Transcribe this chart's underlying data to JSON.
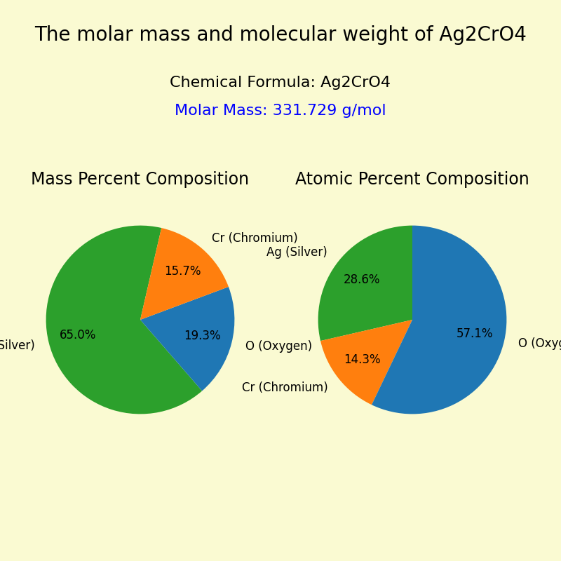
{
  "title": "The molar mass and molecular weight of Ag2CrO4",
  "chemical_formula": "Chemical Formula: Ag2CrO4",
  "molar_mass_text": "Molar Mass: 331.729 g/mol",
  "molar_mass_color": "#0000FF",
  "background_color": "#FAFAD2",
  "title_fontsize": 20,
  "info_fontsize": 16,
  "subtitle1": "Mass Percent Composition",
  "subtitle2": "Atomic Percent Composition",
  "subtitle_fontsize": 17,
  "mass_percent": {
    "labels": [
      "Ag (Silver)",
      "O (Oxygen)",
      "Cr (Chromium)"
    ],
    "values": [
      65.0,
      19.3,
      15.7
    ],
    "colors": [
      "#2ca02c",
      "#1f77b4",
      "#ff7f0e"
    ],
    "startangle": 77
  },
  "atomic_percent": {
    "labels": [
      "Ag (Silver)",
      "Cr (Chromium)",
      "O (Oxygen)"
    ],
    "values": [
      28.6,
      14.3,
      57.1
    ],
    "colors": [
      "#2ca02c",
      "#ff7f0e",
      "#1f77b4"
    ],
    "startangle": 90
  },
  "pie_label_fontsize": 12,
  "pie_pct_fontsize": 12
}
